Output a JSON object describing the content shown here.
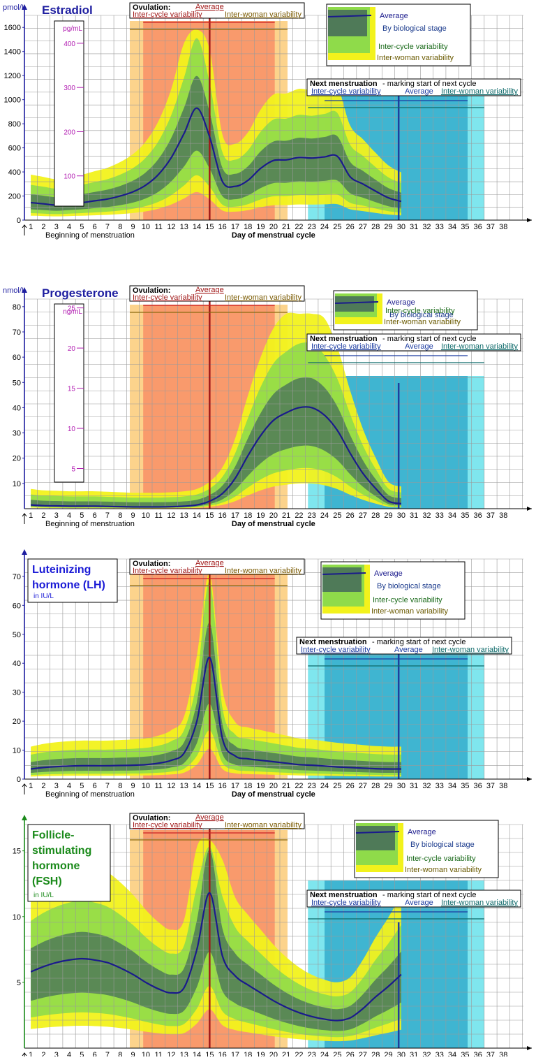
{
  "colors": {
    "yellow": "#f2f21c",
    "lightgreen": "#8fdb4a",
    "darkgreen": "#4f7a58",
    "average": "#1a1a8c",
    "ovulation_outer": "#fcd38c",
    "ovulation_inner": "#f99a6c",
    "ovulation_line": "#a11919",
    "menses_outer": "#7fe6ee",
    "menses_inner": "#3fb5d1",
    "menses_line": "#1f3e9c",
    "grid": "#9a9a9a",
    "axis": "#1e1ea0"
  },
  "common": {
    "x_label": "Day of menstrual cycle",
    "beginning_label": "Beginning of menstruation",
    "ovulation": {
      "title": "Ovulation:",
      "average": "Average",
      "inter_cycle": "Inter-cycle variability",
      "inter_woman": "Inter-woman variability"
    },
    "next_menstruation": {
      "title": "Next menstruation",
      "subtitle": " - marking start of next cycle",
      "inter_cycle": "Inter-cycle variability",
      "average": "Average",
      "inter_woman": "Inter-woman variability"
    },
    "legend": {
      "average": "Average",
      "biological": "By biological stage",
      "inter_cycle": "Inter-cycle variability",
      "inter_woman": "Inter-woman variability"
    }
  },
  "chart_data": [
    {
      "type": "area",
      "title": "Estradiol",
      "ylabel": "pmol/L",
      "ylim": [
        0,
        1700
      ],
      "yticks": [
        0,
        200,
        400,
        600,
        800,
        1000,
        1200,
        1400,
        1600
      ],
      "secondary_axis": {
        "label": "pg/mL",
        "ticks": [
          100,
          200,
          300,
          400
        ]
      },
      "x": [
        1,
        2,
        3,
        4,
        5,
        6,
        7,
        8,
        9,
        10,
        11,
        12,
        13,
        14,
        15,
        16,
        17,
        18,
        19,
        20,
        21,
        22,
        23,
        24,
        25,
        26,
        27,
        28,
        29,
        30
      ],
      "average": [
        145,
        135,
        125,
        135,
        145,
        160,
        175,
        200,
        235,
        290,
        380,
        520,
        720,
        930,
        690,
        320,
        280,
        330,
        430,
        495,
        500,
        520,
        515,
        525,
        530,
        360,
        300,
        240,
        185,
        155
      ],
      "series": [
        {
          "name": "Average",
          "values": [
            145,
            135,
            125,
            135,
            145,
            160,
            175,
            200,
            235,
            290,
            380,
            520,
            720,
            930,
            690,
            320,
            280,
            330,
            430,
            495,
            500,
            520,
            515,
            525,
            530,
            360,
            300,
            240,
            185,
            155
          ]
        }
      ]
    },
    {
      "type": "area",
      "title": "Progesterone",
      "ylabel": "nmol/L",
      "ylim": [
        0,
        83
      ],
      "yticks": [
        10,
        20,
        30,
        40,
        50,
        60,
        70,
        80
      ],
      "secondary_axis": {
        "label": "ng/mL",
        "ticks": [
          5,
          10,
          15,
          20,
          25
        ]
      },
      "x": [
        1,
        2,
        3,
        4,
        5,
        6,
        7,
        8,
        9,
        10,
        11,
        12,
        13,
        14,
        15,
        16,
        17,
        18,
        19,
        20,
        21,
        22,
        23,
        24,
        25,
        26,
        27,
        28,
        29,
        30
      ],
      "average": [
        1.5,
        1.2,
        1.1,
        1,
        1,
        1,
        0.9,
        0.8,
        0.7,
        0.7,
        0.7,
        0.8,
        1,
        1.5,
        3,
        6,
        12,
        21,
        29,
        35,
        38,
        40,
        40,
        37,
        31,
        22,
        14,
        8,
        3,
        2
      ],
      "series": [
        {
          "name": "Average",
          "values": [
            1.5,
            1.2,
            1.1,
            1,
            1,
            1,
            0.9,
            0.8,
            0.7,
            0.7,
            0.7,
            0.8,
            1,
            1.5,
            3,
            6,
            12,
            21,
            29,
            35,
            38,
            40,
            40,
            37,
            31,
            22,
            14,
            8,
            3,
            2
          ]
        }
      ]
    },
    {
      "type": "area",
      "title": "Luteinizing hormone (LH)",
      "title_lines": [
        "Luteinizing",
        "hormone (LH)"
      ],
      "ylabel": "in IU/L",
      "ylim": [
        0,
        76
      ],
      "yticks": [
        0,
        10,
        20,
        30,
        40,
        50,
        60,
        70
      ],
      "x": [
        1,
        2,
        3,
        4,
        5,
        6,
        7,
        8,
        9,
        10,
        11,
        12,
        13,
        14,
        15,
        16,
        17,
        18,
        19,
        20,
        21,
        22,
        23,
        24,
        25,
        26,
        27,
        28,
        29,
        30
      ],
      "average": [
        3.5,
        4,
        4.3,
        4.5,
        4.6,
        4.6,
        4.6,
        4.7,
        4.8,
        5,
        5.5,
        6.5,
        9,
        20,
        42,
        14,
        8,
        7,
        6.5,
        6,
        5.5,
        5,
        4.8,
        4.5,
        4.2,
        4,
        3.8,
        3.6,
        3.5,
        3.5
      ],
      "series": [
        {
          "name": "Average",
          "values": [
            3.5,
            4,
            4.3,
            4.5,
            4.6,
            4.6,
            4.6,
            4.7,
            4.8,
            5,
            5.5,
            6.5,
            9,
            20,
            42,
            14,
            8,
            7,
            6.5,
            6,
            5.5,
            5,
            4.8,
            4.5,
            4.2,
            4,
            3.8,
            3.6,
            3.5,
            3.5
          ]
        }
      ]
    },
    {
      "type": "area",
      "title": "Follicle-stimulating hormone (FSH)",
      "title_lines": [
        "Follicle-",
        "stimulating",
        "hormone",
        "(FSH)"
      ],
      "ylabel": "in IU/L",
      "ylim": [
        0,
        17
      ],
      "yticks": [
        5,
        10,
        15
      ],
      "x": [
        1,
        2,
        3,
        4,
        5,
        6,
        7,
        8,
        9,
        10,
        11,
        12,
        13,
        14,
        15,
        16,
        17,
        18,
        19,
        20,
        21,
        22,
        23,
        24,
        25,
        26,
        27,
        28,
        29,
        30
      ],
      "average": [
        5.8,
        6.2,
        6.5,
        6.7,
        6.8,
        6.7,
        6.5,
        6.1,
        5.6,
        5,
        4.5,
        4.2,
        4.6,
        7.5,
        11.8,
        7,
        5.5,
        4.8,
        4.2,
        3.6,
        3.1,
        2.7,
        2.4,
        2.2,
        2.1,
        2.3,
        3,
        3.9,
        4.7,
        5.6
      ],
      "series": [
        {
          "name": "Average",
          "values": [
            5.8,
            6.2,
            6.5,
            6.7,
            6.8,
            6.7,
            6.5,
            6.1,
            5.6,
            5,
            4.5,
            4.2,
            4.6,
            7.5,
            11.8,
            7,
            5.5,
            4.8,
            4.2,
            3.6,
            3.1,
            2.7,
            2.4,
            2.2,
            2.1,
            2.3,
            3,
            3.9,
            4.7,
            5.6
          ]
        }
      ]
    }
  ]
}
